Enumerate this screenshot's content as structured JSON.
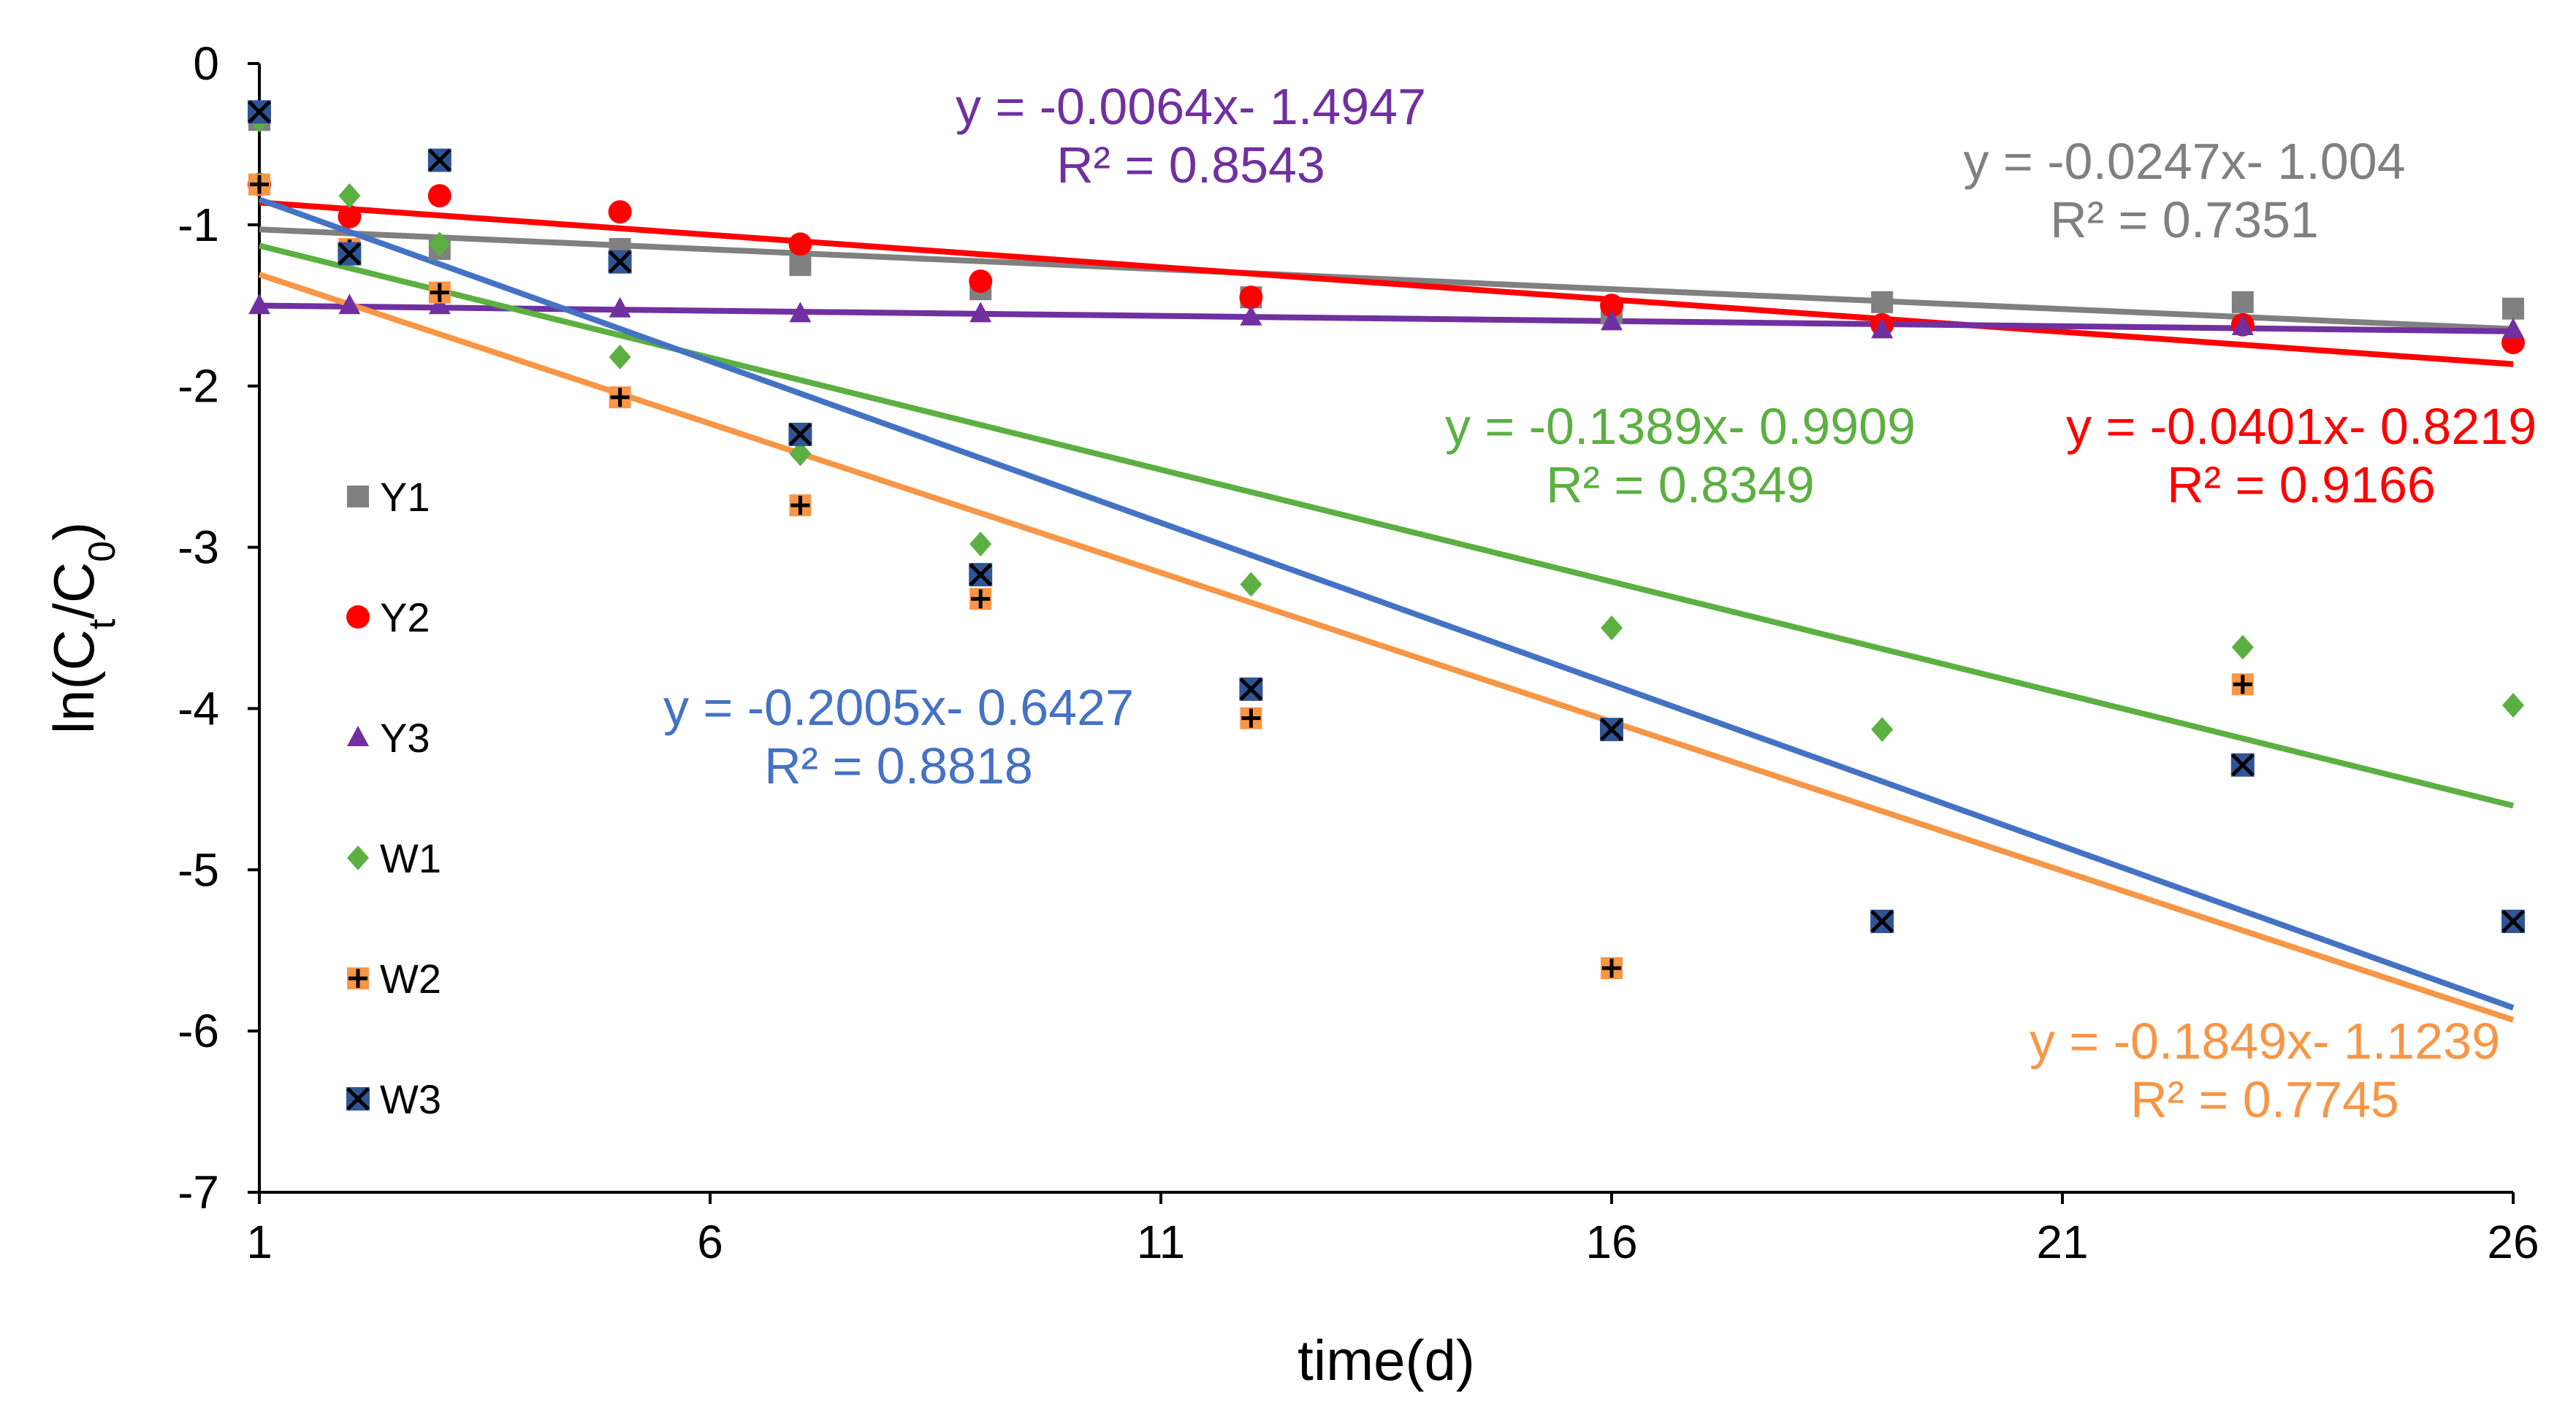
{
  "chart_data": {
    "type": "scatter",
    "title": "",
    "xlabel": "time(d)",
    "ylabel": "ln(Ct/C0)",
    "ylabel_parts": [
      "ln(C",
      "t",
      "/C",
      "0",
      ")"
    ],
    "xlim": [
      1,
      26
    ],
    "ylim": [
      -7,
      0
    ],
    "xticks": [
      "1",
      "6",
      "11",
      "16",
      "21",
      "26"
    ],
    "yticks": [
      "0",
      "-1",
      "-2",
      "-3",
      "-4",
      "-5",
      "-6",
      "-7"
    ],
    "grid": false,
    "legend_position": "left",
    "series": [
      {
        "name": "Y1",
        "color": "#808080",
        "marker": "square",
        "x": [
          1,
          2,
          3,
          5,
          7,
          9,
          12,
          16,
          19,
          23,
          26
        ],
        "y": [
          -0.35,
          -1.15,
          -1.15,
          -1.15,
          -1.25,
          -1.4,
          -1.45,
          -1.55,
          -1.48,
          -1.48,
          -1.52
        ],
        "trend": {
          "slope": -0.0247,
          "intercept": -1.004
        },
        "equation": "y = -0.0247x- 1.004",
        "r2": "R² = 0.7351"
      },
      {
        "name": "Y2",
        "color": "#ff0000",
        "marker": "circle",
        "x": [
          1,
          2,
          3,
          5,
          7,
          9,
          12,
          16,
          19,
          23,
          26
        ],
        "y": [
          -0.75,
          -0.95,
          -0.82,
          -0.92,
          -1.12,
          -1.35,
          -1.45,
          -1.5,
          -1.62,
          -1.62,
          -1.73
        ],
        "trend": {
          "slope": -0.0401,
          "intercept": -0.8219
        },
        "equation": "y = -0.0401x- 0.8219",
        "r2": "R² = 0.9166"
      },
      {
        "name": "Y3",
        "color": "#7030a0",
        "marker": "triangle",
        "x": [
          1,
          2,
          3,
          5,
          7,
          9,
          12,
          16,
          19,
          23,
          26
        ],
        "y": [
          -1.5,
          -1.5,
          -1.5,
          -1.52,
          -1.55,
          -1.55,
          -1.57,
          -1.6,
          -1.65,
          -1.63,
          -1.65
        ],
        "trend": {
          "slope": -0.0064,
          "intercept": -1.4947
        },
        "equation": "y = -0.0064x- 1.4947",
        "r2": "R² = 0.8543"
      },
      {
        "name": "W1",
        "color": "#5bb041",
        "marker": "diamond",
        "x": [
          1,
          2,
          3,
          5,
          7,
          9,
          12,
          16,
          19,
          23,
          26
        ],
        "y": [
          -0.35,
          -0.82,
          -1.12,
          -1.82,
          -2.42,
          -2.98,
          -3.23,
          -3.5,
          -4.13,
          -3.62,
          -3.98
        ],
        "trend": {
          "slope": -0.1389,
          "intercept": -0.9909
        },
        "equation": "y = -0.1389x- 0.9909",
        "r2": "R² = 0.8349"
      },
      {
        "name": "W2",
        "color": "#f79646",
        "marker": "square-plus",
        "x": [
          1,
          2,
          3,
          5,
          7,
          9,
          12,
          16,
          23
        ],
        "y": [
          -0.75,
          -1.15,
          -1.42,
          -2.07,
          -2.74,
          -3.32,
          -4.06,
          -5.61,
          -3.85
        ],
        "trend": {
          "slope": -0.1849,
          "intercept": -1.1239
        },
        "equation": "y = -0.1849x- 1.1239",
        "r2": "R² = 0.7745"
      },
      {
        "name": "W3",
        "color": "#1f3864",
        "marker": "square-x",
        "x": [
          1,
          2,
          3,
          5,
          7,
          9,
          12,
          16,
          19,
          23,
          26
        ],
        "y": [
          -0.3,
          -1.18,
          -0.6,
          -1.23,
          -2.3,
          -3.17,
          -3.88,
          -4.13,
          -5.32,
          -4.35,
          -5.32
        ],
        "trend": {
          "slope": -0.2005,
          "intercept": -0.6427
        },
        "equation": "y = -0.2005x- 0.6427",
        "r2": "R² = 0.8818"
      }
    ],
    "trend_colors": {
      "Y1": "#808080",
      "Y2": "#ff0000",
      "Y3": "#7030a0",
      "W1": "#5bb041",
      "W2": "#f79646",
      "W3": "#4472c4"
    }
  }
}
